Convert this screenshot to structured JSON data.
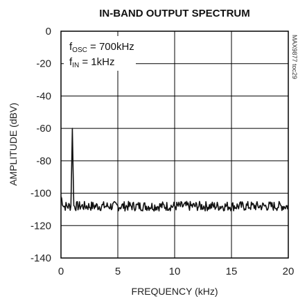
{
  "chart_data": {
    "type": "line",
    "title": "IN-BAND OUTPUT SPECTRUM",
    "xlabel": "FREQUENCY (kHz)",
    "ylabel": "AMPLITUDE (dBV)",
    "xlim": [
      0,
      20
    ],
    "ylim": [
      -140,
      0
    ],
    "x_ticks": [
      0,
      5,
      10,
      15,
      20
    ],
    "x_tick_labels": [
      "0",
      "5",
      "10",
      "15",
      "20"
    ],
    "y_ticks": [
      0,
      -20,
      -40,
      -60,
      -80,
      -100,
      -120,
      -140
    ],
    "y_tick_labels": [
      "0",
      "-20",
      "-40",
      "-60",
      "-80",
      "-100",
      "-120",
      "-140"
    ],
    "grid": true,
    "annotation": {
      "line1_main": "f",
      "line1_sub": "OSC",
      "line1_rest": " = 700kHz",
      "line2_main": "f",
      "line2_sub": "IN",
      "line2_rest": " = 1kHz"
    },
    "side_code": "MAX9877 toc29",
    "series": [
      {
        "noise_floor_dBV": -108,
        "noise_floor_start_dBV": -102,
        "peak": {
          "x": 1.0,
          "y": -60
        }
      }
    ]
  }
}
